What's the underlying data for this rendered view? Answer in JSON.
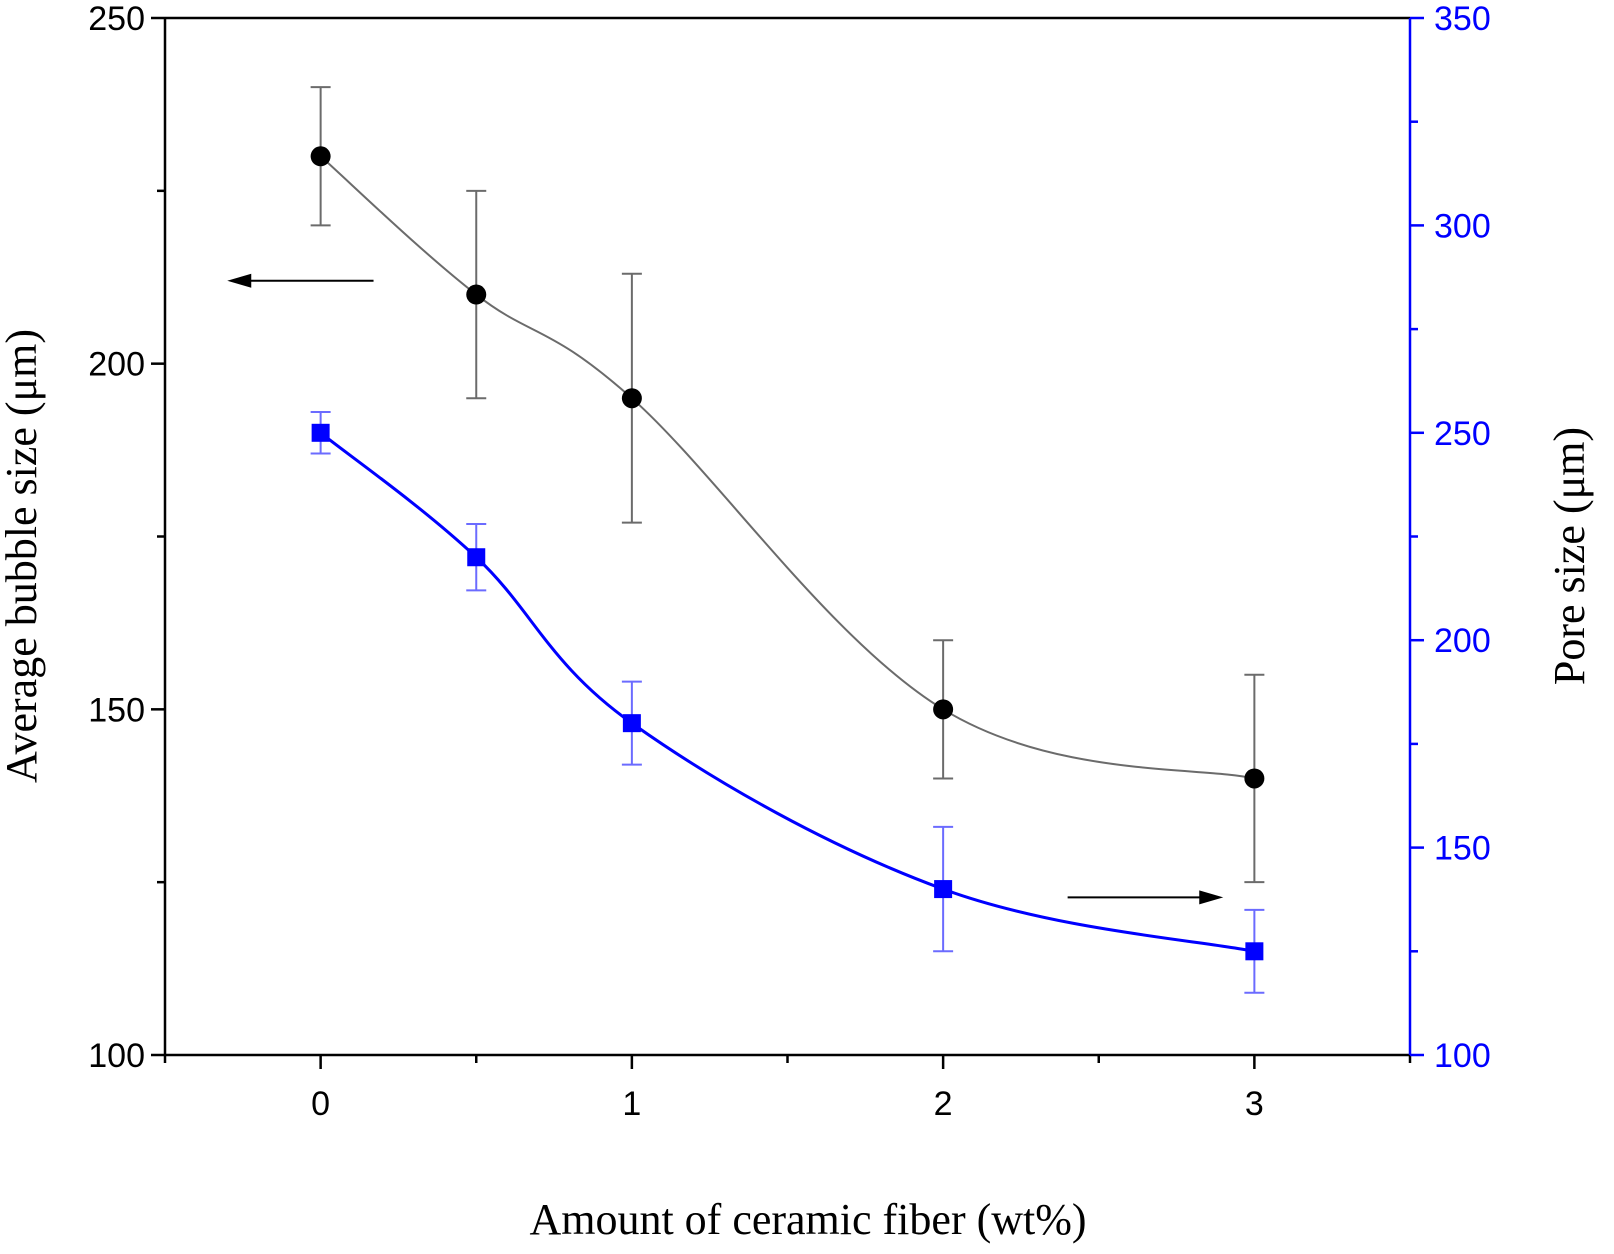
{
  "chart_data": {
    "type": "line",
    "xlabel": "Amount of ceramic fiber (wt%)",
    "ylabel_left": "Average bubble size (μm)",
    "ylabel_right": "Pore size (μm)",
    "xlim": [
      -0.5,
      3.5
    ],
    "ylim_left": [
      100,
      250
    ],
    "ylim_right": [
      100,
      350
    ],
    "x_ticks": [
      0,
      1,
      2,
      3
    ],
    "x_tick_labels": [
      "0",
      "1",
      "2",
      "3"
    ],
    "x_minor_ticks": [
      -0.5,
      0.5,
      1.5,
      2.5,
      3.5
    ],
    "y_left_ticks": [
      100,
      150,
      200,
      250
    ],
    "y_left_tick_labels": [
      "100",
      "150",
      "200",
      "250"
    ],
    "y_right_ticks": [
      100,
      150,
      200,
      250,
      300,
      350
    ],
    "y_right_tick_labels": [
      "100",
      "150",
      "200",
      "250",
      "300",
      "350"
    ],
    "grid": false,
    "legend": "none",
    "series": [
      {
        "axis": "left",
        "marker": "circle",
        "color": "#000000",
        "line_color": "#6b6b6b",
        "errorbar_color": "#6b6b6b",
        "x": [
          0,
          0.5,
          1,
          2,
          3
        ],
        "y": [
          230,
          210,
          195,
          150,
          140
        ],
        "y_err": [
          10,
          15,
          18,
          10,
          15
        ]
      },
      {
        "axis": "right",
        "marker": "square",
        "color": "#0000ff",
        "line_color": "#0000ff",
        "errorbar_color": "#6b6bff",
        "x": [
          0,
          0.5,
          1,
          2,
          3
        ],
        "y": [
          250,
          220,
          180,
          140,
          125
        ],
        "y_err": [
          5,
          8,
          10,
          15,
          10
        ]
      }
    ],
    "annotations": [
      {
        "type": "arrow",
        "direction": "left",
        "series_axis": "left",
        "x_from": 0.17,
        "x_to": -0.3,
        "y": 212
      },
      {
        "type": "arrow",
        "direction": "right",
        "series_axis": "right",
        "x_from": 2.4,
        "x_to": 2.9,
        "y": 138
      }
    ],
    "colors": {
      "axis": "#000000",
      "right_axis": "#0000ff"
    }
  }
}
